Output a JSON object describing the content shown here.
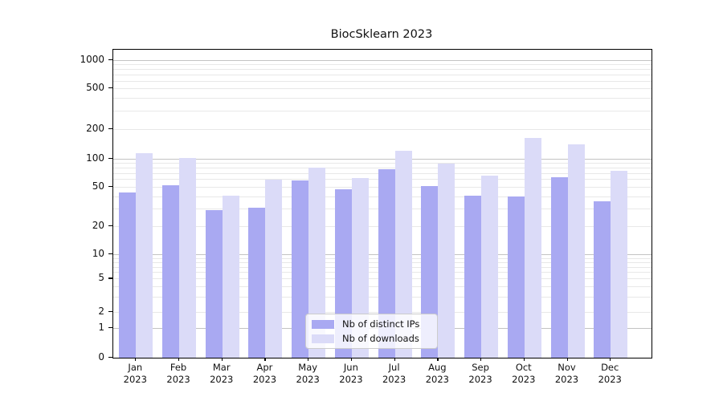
{
  "chart_data": {
    "type": "bar",
    "title": "BiocSklearn 2023",
    "categories": [
      "Jan",
      "Feb",
      "Mar",
      "Apr",
      "May",
      "Jun",
      "Jul",
      "Aug",
      "Sep",
      "Oct",
      "Nov",
      "Dec"
    ],
    "x_tick_year": "2023",
    "series": [
      {
        "name": "Nb of distinct IPs",
        "color": "#a9a9f2",
        "values": [
          44,
          52,
          29,
          31,
          59,
          47,
          77,
          51,
          41,
          40,
          64,
          36
        ]
      },
      {
        "name": "Nb of downloads",
        "color": "#dbdbf8",
        "values": [
          115,
          103,
          41,
          60,
          80,
          62,
          122,
          89,
          66,
          163,
          142,
          74
        ]
      }
    ],
    "y_axis": {
      "scale": "pseudo-log",
      "tick_values": [
        0,
        1,
        2,
        5,
        10,
        20,
        50,
        100,
        200,
        500,
        1000
      ],
      "tick_labels": [
        "0",
        "1",
        "2",
        "5",
        "10",
        "20",
        "50",
        "100",
        "200",
        "500",
        "1000"
      ],
      "major_gridline_values": [
        1,
        10,
        100,
        1000
      ],
      "minor_gridline_values": [
        2,
        3,
        4,
        5,
        6,
        7,
        8,
        9,
        20,
        30,
        40,
        50,
        60,
        70,
        80,
        90,
        200,
        300,
        400,
        500,
        600,
        700,
        800,
        900
      ],
      "scale_anchors": [
        [
          0,
          0
        ],
        [
          1,
          0.0952
        ],
        [
          2,
          0.1486
        ],
        [
          5,
          0.2556
        ],
        [
          10,
          0.3351
        ],
        [
          20,
          0.4263
        ],
        [
          50,
          0.5554
        ],
        [
          100,
          0.6462
        ],
        [
          200,
          0.7418
        ],
        [
          500,
          0.8748
        ],
        [
          1000,
          0.9661
        ]
      ]
    },
    "legend": {
      "position": "lower center",
      "entries": [
        {
          "label": "Nb of distinct IPs",
          "color": "#a9a9f2"
        },
        {
          "label": "Nb of downloads",
          "color": "#dbdbf8"
        }
      ]
    },
    "grid": true
  },
  "colors": {
    "background": "#ffffff",
    "major_grid": "#c3c3c3",
    "minor_grid": "#e8e8e8",
    "spine": "#000000",
    "legend_border": "#cccccc"
  }
}
